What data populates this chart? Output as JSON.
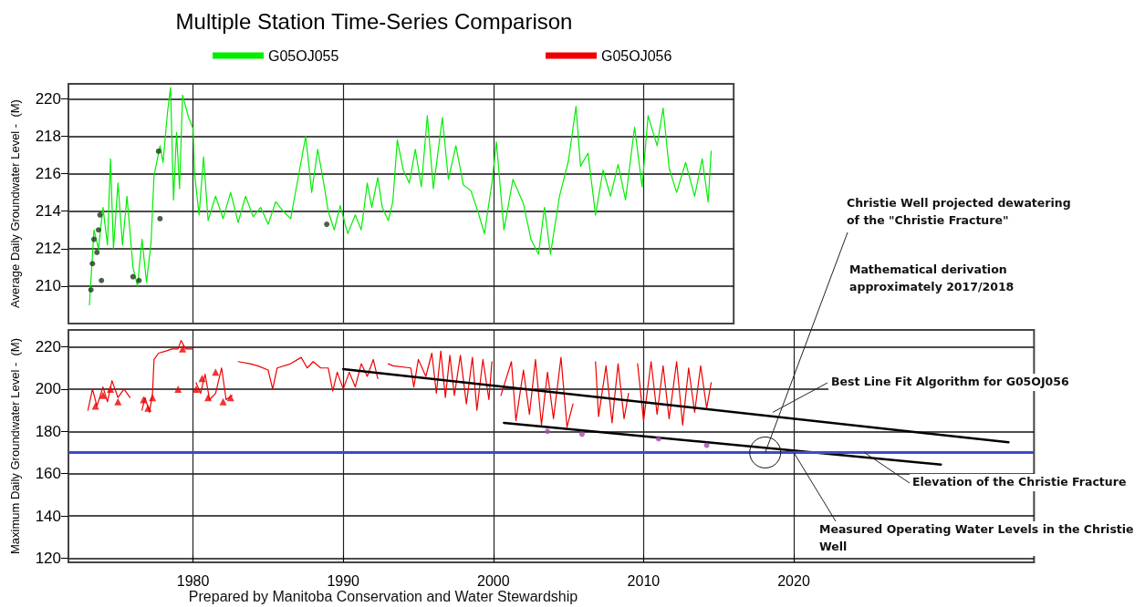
{
  "chart_data": [
    {
      "type": "line",
      "title": "Multiple Station Time-Series Comparison",
      "ylabel": "Average Daily Groundwater Level -  (M)",
      "xlim": [
        1971.7,
        2016
      ],
      "xticks": [
        1980,
        1990,
        2000,
        2010
      ],
      "ylim": [
        208,
        220.8
      ],
      "yticks": [
        210,
        212,
        214,
        216,
        218,
        220
      ],
      "grid": true,
      "legend": "top",
      "tick_labels": "y",
      "marker": "none",
      "series": [
        {
          "name": "G05OJ055",
          "color": "#00ee00",
          "x": [
            1973.1,
            1973.4,
            1973.7,
            1974.0,
            1974.3,
            1974.5,
            1974.7,
            1975.0,
            1975.3,
            1975.6,
            1976.0,
            1976.3,
            1976.6,
            1976.9,
            1977.2,
            1977.4,
            1977.8,
            1978.0,
            1978.3,
            1978.5,
            1978.7,
            1978.9,
            1979.1,
            1979.3,
            1979.7,
            1980.0,
            1980.1,
            1980.4,
            1980.7,
            1981.0,
            1981.5,
            1982.0,
            1982.5,
            1983.0,
            1983.5,
            1984.0,
            1984.5,
            1985.0,
            1985.5,
            1986.0,
            1986.5,
            1987.0,
            1987.5,
            1987.9,
            1988.3,
            1988.7,
            1989.0,
            1989.4,
            1989.8,
            1990.3,
            1990.8,
            1991.2,
            1991.6,
            1991.9,
            1992.3,
            1992.6,
            1993.0,
            1993.3,
            1993.6,
            1994.0,
            1994.4,
            1994.8,
            1995.2,
            1995.6,
            1996.0,
            1996.6,
            1997.0,
            1997.5,
            1998.0,
            1998.5,
            1999.0,
            1999.4,
            1999.9,
            2000.2,
            2000.7,
            2001.3,
            2002.0,
            2002.5,
            2003.0,
            2003.4,
            2003.8,
            2004.4,
            2005.0,
            2005.5,
            2005.8,
            2006.3,
            2006.8,
            2007.3,
            2007.8,
            2008.3,
            2008.8,
            2009.4,
            2009.9,
            2010.3,
            2010.9,
            2011.3,
            2011.7,
            2012.2,
            2012.8,
            2013.4,
            2013.9,
            2014.3,
            2014.5
          ],
          "values": [
            209.0,
            213,
            212,
            214.2,
            212.2,
            216.8,
            212,
            215.5,
            212.2,
            214.8,
            211,
            210,
            212.5,
            210.2,
            212.3,
            215.9,
            217.5,
            216.6,
            219.3,
            220.6,
            214.6,
            218.2,
            215.2,
            220.2,
            219,
            218.4,
            216,
            213.8,
            216.9,
            213.5,
            214.8,
            213.6,
            215,
            213.4,
            214.8,
            213.7,
            214.2,
            213.3,
            214.5,
            214,
            213.6,
            215.8,
            218,
            215,
            217.3,
            215.5,
            214,
            213,
            214.3,
            212.8,
            213.8,
            213,
            215.5,
            214.2,
            215.8,
            214.2,
            213.5,
            214.5,
            217.8,
            216.2,
            215.5,
            217.3,
            215.3,
            219.1,
            215.2,
            219,
            215.7,
            217.5,
            215.4,
            215.1,
            213.9,
            212.8,
            215.5,
            217.7,
            213,
            215.7,
            214.4,
            212.5,
            211.7,
            214.2,
            211.7,
            214.8,
            216.7,
            219.6,
            216.4,
            217.1,
            213.8,
            216.2,
            214.8,
            216.5,
            214.6,
            218.5,
            215.3,
            219.1,
            217.5,
            219.5,
            216.3,
            215,
            216.6,
            214.8,
            216.8,
            214.5,
            217.2
          ]
        },
        {
          "type": "scatter",
          "marker": "circle",
          "color": "#1a3a1a",
          "x": [
            1973.2,
            1973.3,
            1973.4,
            1973.6,
            1973.7,
            1973.8,
            1973.9,
            1976.0,
            1976.4,
            1977.7,
            1977.8,
            1988.9
          ],
          "values": [
            209.8,
            211.2,
            212.5,
            211.8,
            213,
            213.8,
            210.3,
            210.5,
            210.3,
            217.2,
            213.6,
            213.3
          ]
        }
      ]
    },
    {
      "type": "line",
      "ylabel": "Maximum Daily Groundwater Level -  (M)",
      "xlim": [
        1971.7,
        2036
      ],
      "xticks": [
        1980,
        1990,
        2000,
        2010,
        2020
      ],
      "ylim": [
        118,
        228
      ],
      "yticks": [
        120,
        140,
        160,
        180,
        200,
        220
      ],
      "grid": true,
      "legend": "top",
      "marker": "none",
      "ref_lines": [
        {
          "axis": "y",
          "value": 170,
          "color": "#3f48cc"
        }
      ],
      "annotations": [
        {
          "text": "Christie Well projected dewatering of the \"Christie Fracture\"",
          "x": 2018.1,
          "y": 170
        },
        "Mathematical derivation approximately 2017/2018",
        {
          "text": "Best Line Fit Algorithm for G05OJ056",
          "x": 2018.6,
          "y": 189
        },
        {
          "text": "Elevation of the Christie Fracture",
          "x": 2024.7,
          "y": 170
        },
        {
          "text": "Measured Operating Water Levels in the Christie Well",
          "x": 2020,
          "y": 170
        },
        "Prepared by Manitoba Conservation and Water Stewardship"
      ],
      "series": [
        {
          "name": "G05OJ056",
          "color": "#ee0000",
          "x": [
            1973.0,
            1973.3,
            1973.6,
            1974.0,
            1974.3,
            1974.6,
            1975.0,
            1975.4,
            1975.8,
            1976.2,
            1976.6,
            1976.8,
            1977.1,
            1977.3,
            1977.4,
            1977.7,
            1978.2,
            1978.6,
            1979.0,
            1979.2,
            1979.5,
            1980.0,
            1980.1,
            1980.2,
            1980.5,
            1980.8,
            1981.1,
            1981.5,
            1981.9,
            1982.2,
            1982.6,
            1982.9,
            1983.0,
            1983.8,
            1984.3,
            1985.0,
            1985.3,
            1985.6,
            1986.5,
            1987.2,
            1987.6,
            1988.0,
            1988.5,
            1989.0,
            1989.3,
            1989.6,
            1990.0,
            1990.4,
            1990.8,
            1991.2,
            1991.6,
            1992.0,
            1992.3,
            1992.8,
            1993.0,
            1993.3,
            1994.5,
            1994.7,
            1995.0,
            1995.5,
            1995.9,
            1996.2,
            1996.5,
            1996.8,
            1997.1,
            1997.4,
            1997.8,
            1998.2,
            1998.6,
            1998.9,
            1999.3,
            1999.7,
            1999.9,
            2000.2,
            2000.5,
            2001.2,
            2001.5,
            2002.0,
            2002.4,
            2002.8,
            2003.2,
            2003.6,
            2004.0,
            2004.5,
            2004.9,
            2005.3,
            2005.6,
            2006.8,
            2007.0,
            2007.5,
            2007.9,
            2008.3,
            2008.7,
            2009.0,
            2009.3,
            2009.6,
            2010.0,
            2010.5,
            2010.9,
            2011.3,
            2011.7,
            2012.2,
            2012.6,
            2013.0,
            2013.4,
            2013.8,
            2014.2,
            2014.5
          ],
          "values": [
            190,
            200,
            192,
            201,
            194,
            204,
            196,
            200,
            196,
            null,
            190,
            196,
            189,
            198,
            214,
            217,
            218,
            219,
            219,
            223,
            219,
            219,
            null,
            203,
            198,
            207,
            195,
            198,
            210,
            195,
            197,
            null,
            213,
            212,
            211,
            209,
            200,
            210,
            212,
            215,
            210,
            213,
            210,
            210,
            199,
            208,
            200,
            208,
            201,
            212,
            206,
            214,
            205,
            null,
            212,
            211,
            210,
            201,
            214,
            206,
            217,
            198,
            218,
            196,
            216,
            197,
            216,
            193,
            215,
            190,
            214,
            195,
            213,
            null,
            197,
            213,
            185,
            209,
            188,
            214,
            183,
            208,
            186,
            215,
            182,
            193,
            null,
            213,
            187,
            211,
            184,
            212,
            186,
            198,
            null,
            212,
            185,
            213,
            188,
            211,
            186,
            213,
            183,
            210,
            189,
            211,
            191,
            203
          ]
        },
        {
          "type": "scatter",
          "marker": "triangle",
          "color": "#ee0000",
          "x": [
            1973.5,
            1974.0,
            1974.5,
            1975.0,
            1976.7,
            1977.0,
            1977.3,
            1979.0,
            1979.3,
            1980.2,
            1980.6,
            1981.0,
            1981.5,
            1982.0,
            1982.5
          ],
          "values": [
            192,
            197,
            200,
            194,
            195,
            191,
            196,
            200,
            219,
            200,
            205,
            196,
            208,
            194,
            196
          ]
        },
        {
          "type": "line",
          "color": "#000000",
          "x": [
            1990,
            2034.3
          ],
          "values": [
            209.5,
            174.8
          ]
        },
        {
          "type": "line",
          "color": "#000000",
          "x": [
            2000.7,
            2029.8
          ],
          "values": [
            184.0,
            164.3
          ]
        },
        {
          "type": "scatter",
          "marker": "circle",
          "color": "#a64ca6",
          "x": [
            2003.6,
            2005.9,
            2011.0,
            2014.2
          ],
          "values": [
            180,
            178.7,
            176.5,
            173.4
          ]
        }
      ]
    }
  ]
}
